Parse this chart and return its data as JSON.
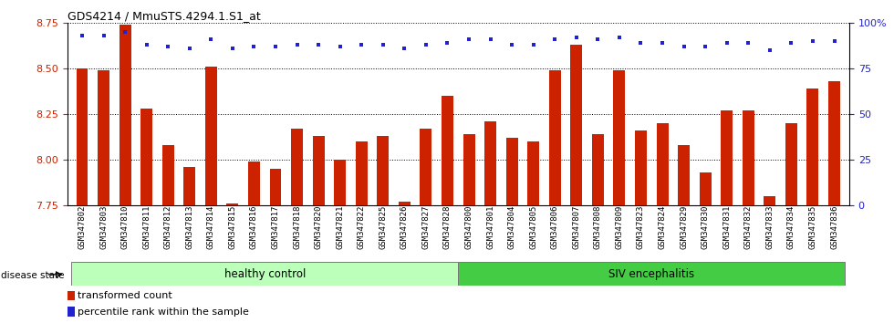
{
  "title": "GDS4214 / MmuSTS.4294.1.S1_at",
  "samples": [
    "GSM347802",
    "GSM347803",
    "GSM347810",
    "GSM347811",
    "GSM347812",
    "GSM347813",
    "GSM347814",
    "GSM347815",
    "GSM347816",
    "GSM347817",
    "GSM347818",
    "GSM347820",
    "GSM347821",
    "GSM347822",
    "GSM347825",
    "GSM347826",
    "GSM347827",
    "GSM347828",
    "GSM347800",
    "GSM347801",
    "GSM347804",
    "GSM347805",
    "GSM347806",
    "GSM347807",
    "GSM347808",
    "GSM347809",
    "GSM347823",
    "GSM347824",
    "GSM347829",
    "GSM347830",
    "GSM347831",
    "GSM347832",
    "GSM347833",
    "GSM347834",
    "GSM347835",
    "GSM347836"
  ],
  "bar_values": [
    8.5,
    8.49,
    8.74,
    8.28,
    8.08,
    7.96,
    8.51,
    7.76,
    7.99,
    7.95,
    8.17,
    8.13,
    8.0,
    8.1,
    8.13,
    7.77,
    8.17,
    8.35,
    8.14,
    8.21,
    8.12,
    8.1,
    8.49,
    8.63,
    8.14,
    8.49,
    8.16,
    8.2,
    8.08,
    7.93,
    8.27,
    8.27,
    7.8,
    8.2,
    8.39,
    8.43
  ],
  "percentile_values": [
    93,
    93,
    95,
    88,
    87,
    86,
    91,
    86,
    87,
    87,
    88,
    88,
    87,
    88,
    88,
    86,
    88,
    89,
    91,
    91,
    88,
    88,
    91,
    92,
    91,
    92,
    89,
    89,
    87,
    87,
    89,
    89,
    85,
    89,
    90,
    90
  ],
  "healthy_count": 18,
  "ylim_left": [
    7.75,
    8.75
  ],
  "ylim_right": [
    0,
    100
  ],
  "yticks_left": [
    7.75,
    8.0,
    8.25,
    8.5,
    8.75
  ],
  "yticks_right": [
    0,
    25,
    50,
    75,
    100
  ],
  "bar_color": "#cc2200",
  "dot_color": "#2222cc",
  "healthy_color": "#bbffbb",
  "siv_color": "#44cc44",
  "healthy_label": "healthy control",
  "siv_label": "SIV encephalitis",
  "disease_state_label": "disease state",
  "legend1": "transformed count",
  "legend2": "percentile rank within the sample",
  "fig_bg": "#ffffff",
  "plot_bg": "#ffffff"
}
